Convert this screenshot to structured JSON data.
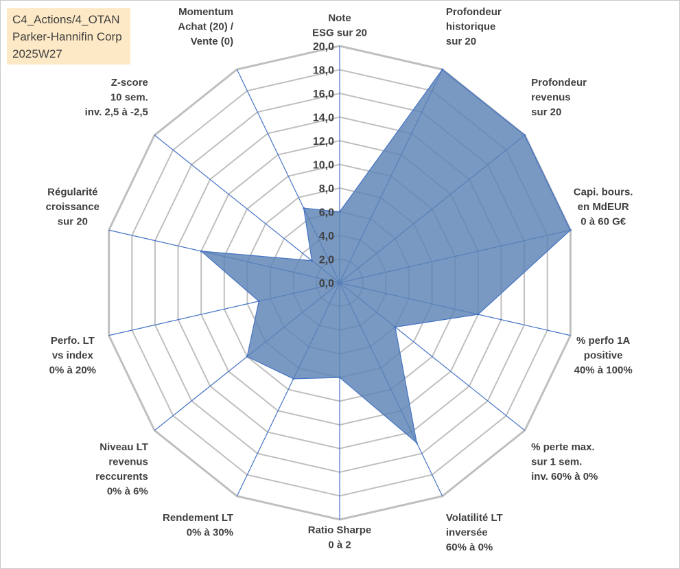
{
  "title_box": {
    "line1": "C4_Actions/4_OTAN",
    "line2": "Parker-Hannifin Corp",
    "line3": "2025W27"
  },
  "chart_data": {
    "type": "radar",
    "r_min": 0,
    "r_max": 20,
    "r_step": 2,
    "tick_labels": [
      "0,0",
      "2,0",
      "4,0",
      "6,0",
      "8,0",
      "10,0",
      "12,0",
      "14,0",
      "16,0",
      "18,0",
      "20,0"
    ],
    "categories": [
      [
        "Note",
        "ESG sur 20"
      ],
      [
        "Profondeur",
        "historique",
        "sur 20"
      ],
      [
        "Profondeur",
        "revenus",
        "sur 20"
      ],
      [
        "Capi. bours.",
        "en MdEUR",
        "0 à 60 G€"
      ],
      [
        "% perfo 1A",
        "positive",
        "40% à 100%"
      ],
      [
        "% perte max.",
        "sur 1 sem.",
        "inv. 60% à 0%"
      ],
      [
        "Volatilité LT",
        "inversée",
        "60% à 0%"
      ],
      [
        "Ratio Sharpe",
        "0 à 2"
      ],
      [
        "Rendement LT",
        "0% à 30%"
      ],
      [
        "Niveau LT",
        "revenus",
        "reccurents",
        "0% à 6%"
      ],
      [
        "Perfo. LT",
        "vs index",
        "0% à 20%"
      ],
      [
        "Régularité",
        "croissance",
        "sur 20"
      ],
      [
        "Z-score",
        "10 sem.",
        "inv. 2,5 à -2,5"
      ],
      [
        "Momentum",
        "Achat (20) /",
        "Vente (0)"
      ]
    ],
    "values": [
      6.0,
      20.0,
      20.0,
      20.0,
      12.0,
      6.0,
      15.0,
      8.0,
      9.0,
      10.0,
      7.0,
      12.0,
      3.0,
      7.0
    ],
    "grid": true,
    "colors": {
      "fill": "#5b83b4",
      "fill_opacity": 0.82,
      "line": "#4472c4",
      "grid": "#bfbfbf",
      "spoke": "#4472c4",
      "text": "#404040"
    }
  }
}
